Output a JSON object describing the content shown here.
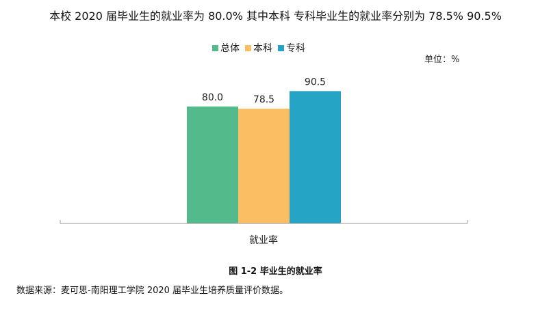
{
  "headline": "本校 2020 届毕业生的就业率为 80.0%  其中本科  专科毕业生的就业率分别为 78.5%  90.5%",
  "unit_label": "单位：%",
  "caption": "图 1-2 毕业生的就业率",
  "source": "数据来源：麦可思-南阳理工学院 2020 届毕业生培养质量评价数据。",
  "chart_data": {
    "type": "bar",
    "title": "",
    "categories": [
      "就业率"
    ],
    "series": [
      {
        "name": "总体",
        "values": [
          80.0
        ],
        "color": "#52BA8B"
      },
      {
        "name": "本科",
        "values": [
          78.5
        ],
        "color": "#FCBE63"
      },
      {
        "name": "专科",
        "values": [
          90.5
        ],
        "color": "#25A4C6"
      }
    ],
    "ylim": [
      0,
      100
    ],
    "grid": false,
    "legend": "top-center",
    "data_labels": [
      "80.0",
      "78.5",
      "90.5"
    ]
  }
}
